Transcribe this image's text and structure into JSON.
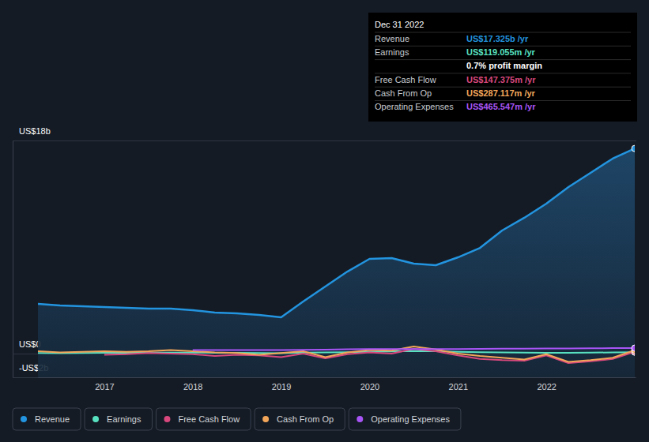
{
  "chart_data": {
    "type": "line",
    "x": [
      2016.25,
      2016.5,
      2016.75,
      2017,
      2017.25,
      2017.5,
      2017.75,
      2018,
      2018.25,
      2018.5,
      2018.75,
      2019,
      2019.25,
      2019.5,
      2019.75,
      2020,
      2020.25,
      2020.5,
      2020.75,
      2021,
      2021.25,
      2021.5,
      2021.75,
      2022,
      2022.25,
      2022.5,
      2022.75,
      2023
    ],
    "xlim": [
      2016.25,
      2023
    ],
    "xticks": [
      2017,
      2018,
      2019,
      2020,
      2021,
      2022
    ],
    "ylim": [
      -2,
      18
    ],
    "yticks": [
      {
        "value": -2,
        "label": "-US$2b"
      },
      {
        "value": 0,
        "label": "US$0"
      },
      {
        "value": 18,
        "label": "US$18b"
      }
    ],
    "grid": true,
    "legend": "bottom-left",
    "series": [
      {
        "name": "Revenue",
        "color": "#2394df",
        "type": "area",
        "values": [
          4.2,
          4.07,
          4.0,
          3.93,
          3.87,
          3.8,
          3.8,
          3.67,
          3.47,
          3.4,
          3.27,
          3.07,
          4.4,
          5.67,
          6.93,
          8.0,
          8.07,
          7.6,
          7.47,
          8.13,
          8.93,
          10.4,
          11.47,
          12.67,
          14.07,
          15.27,
          16.47,
          17.325
        ]
      },
      {
        "name": "Earnings",
        "color": "#58e1c1",
        "values": [
          0.05,
          0.04,
          0.05,
          0.06,
          0.07,
          0.08,
          0.08,
          0.09,
          0.07,
          0.06,
          0.05,
          0.04,
          0.08,
          0.1,
          0.12,
          0.15,
          0.18,
          0.22,
          0.2,
          0.15,
          0.12,
          0.1,
          0.08,
          0.07,
          0.06,
          0.08,
          0.1,
          0.119055
        ]
      },
      {
        "name": "Free Cash Flow",
        "color": "#d8487d",
        "values": [
          null,
          null,
          null,
          -0.1,
          -0.05,
          0.05,
          0.0,
          -0.05,
          -0.2,
          -0.1,
          -0.15,
          -0.3,
          0.0,
          -0.4,
          -0.05,
          0.1,
          0.0,
          0.4,
          0.2,
          -0.15,
          -0.45,
          -0.55,
          -0.6,
          -0.15,
          -0.8,
          -0.65,
          -0.45,
          0.147375
        ]
      },
      {
        "name": "Cash From Op",
        "color": "#f2a65a",
        "values": [
          0.2,
          0.1,
          0.15,
          0.2,
          0.15,
          0.2,
          0.3,
          0.2,
          0.1,
          0.05,
          -0.1,
          0.05,
          0.2,
          -0.3,
          0.1,
          0.3,
          0.25,
          0.6,
          0.35,
          0.0,
          -0.2,
          -0.35,
          -0.5,
          -0.05,
          -0.7,
          -0.55,
          -0.35,
          0.287117
        ]
      },
      {
        "name": "Operating Expenses",
        "color": "#a855f7",
        "values": [
          null,
          null,
          null,
          null,
          null,
          null,
          null,
          0.3,
          0.3,
          0.3,
          0.3,
          0.3,
          0.32,
          0.34,
          0.36,
          0.38,
          0.38,
          0.38,
          0.38,
          0.39,
          0.4,
          0.41,
          0.42,
          0.43,
          0.44,
          0.45,
          0.46,
          0.465547
        ]
      }
    ],
    "tooltip": {
      "title": "Dec 31 2022",
      "rows": [
        {
          "label": "Revenue",
          "value": "US$17.325b /yr"
        },
        {
          "label": "Earnings",
          "value": "US$119.055m /yr"
        },
        {
          "value": "0.7% profit margin"
        },
        {
          "label": "Free Cash Flow",
          "value": "US$147.375m /yr"
        },
        {
          "label": "Cash From Op",
          "value": "US$287.117m /yr"
        },
        {
          "label": "Operating Expenses",
          "value": "US$465.547m /yr"
        }
      ]
    }
  }
}
